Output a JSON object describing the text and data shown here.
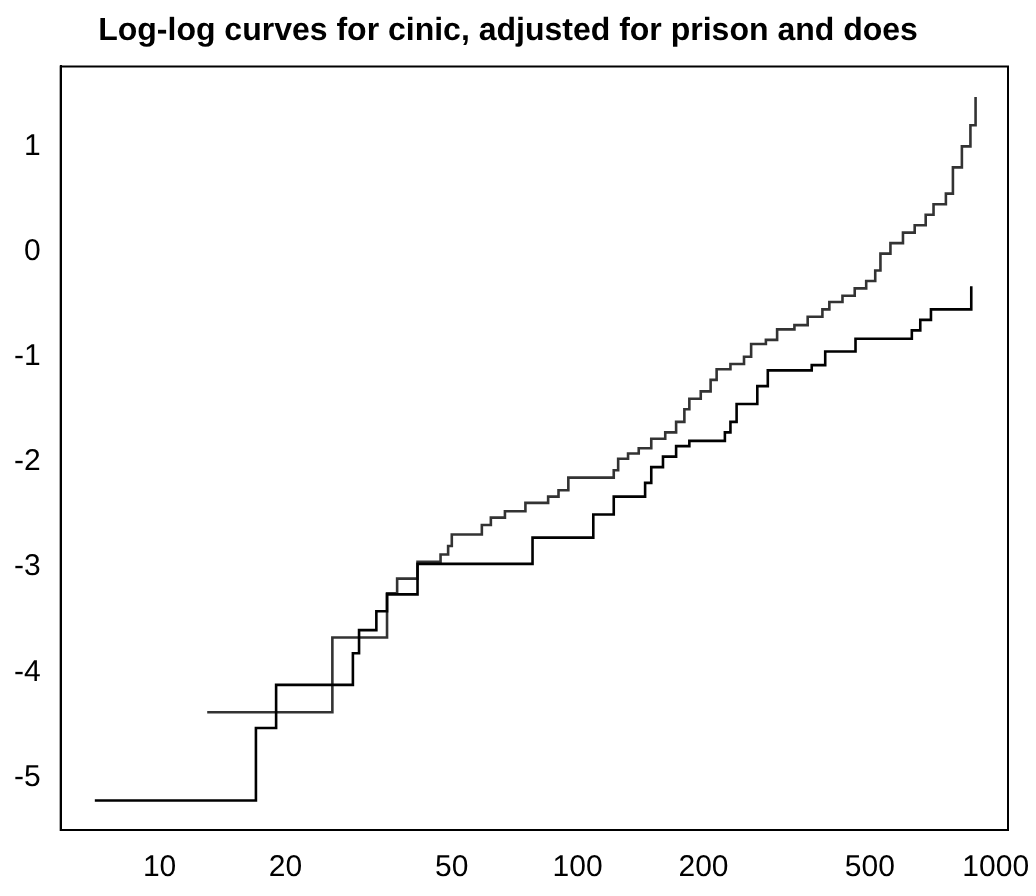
{
  "chart_data": {
    "type": "step",
    "title": "Log-log curves for cinic, adjusted for prison and does",
    "log": "x",
    "marker": "none",
    "xlim": [
      5.8,
      1070
    ],
    "ylim": [
      -5.5,
      1.76
    ],
    "xticks": [
      10,
      20,
      50,
      100,
      200,
      500,
      1000
    ],
    "yticks": [
      -5,
      -4,
      -3,
      -2,
      -1,
      0,
      1
    ],
    "series": [
      {
        "color": "#000000",
        "x": [
          7,
          17,
          19,
          29,
          30,
          33,
          35,
          41.4,
          78,
          109,
          122,
          145,
          150,
          160,
          172,
          185,
          225,
          232,
          240,
          269,
          285,
          363,
          391,
          462,
          630,
          660,
          700,
          874
        ],
        "values": [
          -5.22,
          -4.53,
          -4.12,
          -3.82,
          -3.6,
          -3.42,
          -3.26,
          -2.97,
          -2.72,
          -2.5,
          -2.33,
          -2.2,
          -2.05,
          -1.95,
          -1.85,
          -1.8,
          -1.72,
          -1.62,
          -1.45,
          -1.28,
          -1.13,
          -1.08,
          -0.95,
          -0.83,
          -0.75,
          -0.65,
          -0.55,
          -0.33
        ]
      },
      {
        "color": "#333333",
        "x": [
          13,
          25.9,
          35,
          37,
          41.4,
          47,
          49,
          50,
          59,
          62,
          67,
          75,
          85,
          90,
          95,
          122,
          125,
          132,
          140,
          150,
          162,
          172,
          180,
          185,
          197,
          208,
          215,
          232,
          250,
          260,
          282,
          300,
          330,
          355,
          385,
          400,
          430,
          460,
          490,
          515,
          530,
          560,
          600,
          640,
          680,
          710,
          760,
          790,
          830,
          870,
          895
        ],
        "values": [
          -4.38,
          -3.67,
          -3.25,
          -3.11,
          -2.95,
          -2.88,
          -2.8,
          -2.69,
          -2.6,
          -2.53,
          -2.47,
          -2.39,
          -2.33,
          -2.27,
          -2.15,
          -2.08,
          -1.97,
          -1.92,
          -1.87,
          -1.78,
          -1.72,
          -1.62,
          -1.5,
          -1.4,
          -1.33,
          -1.22,
          -1.12,
          -1.07,
          -1.0,
          -0.88,
          -0.84,
          -0.74,
          -0.7,
          -0.62,
          -0.55,
          -0.48,
          -0.42,
          -0.35,
          -0.28,
          -0.18,
          -0.02,
          0.08,
          0.18,
          0.25,
          0.35,
          0.45,
          0.55,
          0.8,
          1.0,
          1.2,
          1.47
        ]
      }
    ]
  }
}
